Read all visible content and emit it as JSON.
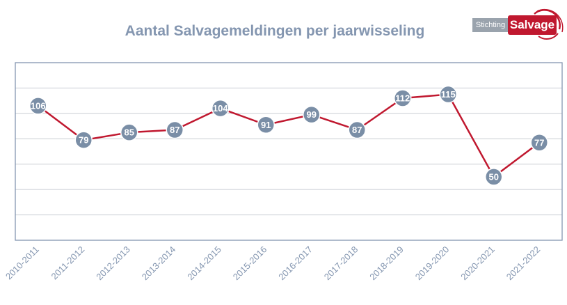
{
  "logo": {
    "prefix": "Stichting",
    "name": "Salvage"
  },
  "colors": {
    "line": "#c0182f",
    "marker": "#7a8ea6",
    "grid": "#c9ced4",
    "frame": "#8496b0",
    "text": "#8496b0"
  },
  "chart_data": {
    "type": "line",
    "title": "Aantal Salvagemeldingen per jaarwisseling",
    "categories": [
      "2010-2011",
      "2011-2012",
      "2012-2013",
      "2013-2014",
      "2014-2015",
      "2015-2016",
      "2016-2017",
      "2017-2018",
      "2018-2019",
      "2019-2020",
      "2020-2021",
      "2021-2022"
    ],
    "series": [
      {
        "values": [
          106,
          79,
          85,
          87,
          104,
          91,
          99,
          87,
          112,
          115,
          50,
          77
        ]
      }
    ],
    "ylim": [
      0,
      140
    ],
    "y_gridlines": [
      20,
      40,
      60,
      80,
      100,
      120
    ],
    "y_tick_labels_visible": false,
    "grid": true,
    "data_labels": true,
    "legend": "none"
  }
}
